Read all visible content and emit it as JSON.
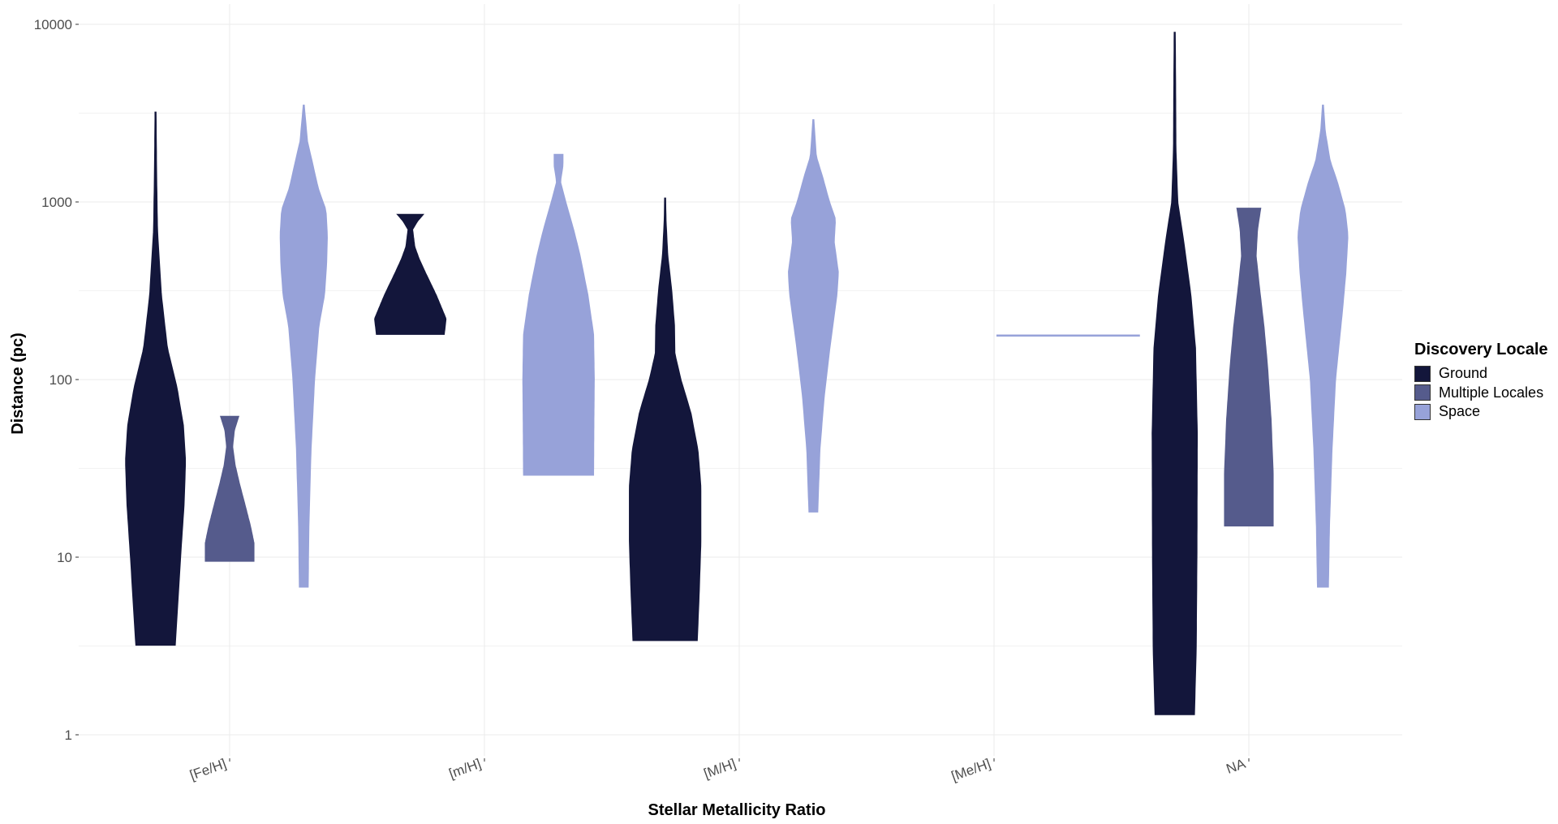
{
  "chart_data": {
    "type": "violin",
    "title": "",
    "xlabel": "Stellar Metallicity Ratio",
    "ylabel": "Distance (pc)",
    "y_scale": "log10",
    "ylim": [
      0.75,
      10000
    ],
    "y_ticks": [
      1,
      10,
      100,
      1000,
      10000
    ],
    "y_tick_labels": [
      "1",
      "10",
      "100",
      "1000",
      "10000"
    ],
    "categories": [
      "[Fe/H]",
      "[m/H]",
      "[M/H]",
      "[Me/H]",
      "NA"
    ],
    "grid": true,
    "legend": {
      "title": "Discovery Locale",
      "position": "right"
    },
    "series": [
      {
        "name": "Ground",
        "color": "#13163b",
        "violins": [
          {
            "category": "[Fe/H]",
            "min": 3.2,
            "max": 3200,
            "profile": [
              [
                3.2,
                0.55
              ],
              [
                5,
                0.61
              ],
              [
                10,
                0.7
              ],
              [
                20,
                0.8
              ],
              [
                35,
                0.84
              ],
              [
                55,
                0.78
              ],
              [
                90,
                0.6
              ],
              [
                150,
                0.33
              ],
              [
                300,
                0.16
              ],
              [
                700,
                0.05
              ],
              [
                1500,
                0.025
              ],
              [
                3200,
                0.01
              ]
            ]
          },
          {
            "category": "[m/H]",
            "min": 180,
            "max": 850,
            "profile": [
              [
                180,
                0.95
              ],
              [
                220,
                1.0
              ],
              [
                300,
                0.72
              ],
              [
                400,
                0.42
              ],
              [
                480,
                0.24
              ],
              [
                560,
                0.12
              ],
              [
                700,
                0.06
              ],
              [
                780,
                0.2
              ],
              [
                850,
                0.36
              ]
            ]
          },
          {
            "category": "[M/H]",
            "min": 3.4,
            "max": 1050,
            "profile": [
              [
                3.4,
                0.9
              ],
              [
                6,
                0.95
              ],
              [
                12,
                1.0
              ],
              [
                25,
                1.0
              ],
              [
                40,
                0.92
              ],
              [
                65,
                0.72
              ],
              [
                100,
                0.44
              ],
              [
                140,
                0.27
              ],
              [
                200,
                0.26
              ],
              [
                320,
                0.18
              ],
              [
                500,
                0.07
              ],
              [
                800,
                0.02
              ],
              [
                1050,
                0.01
              ]
            ]
          },
          {
            "category": "NA",
            "min": 1.3,
            "max": 9000,
            "profile": [
              [
                1.3,
                0.55
              ],
              [
                3,
                0.6
              ],
              [
                10,
                0.62
              ],
              [
                50,
                0.63
              ],
              [
                150,
                0.58
              ],
              [
                300,
                0.45
              ],
              [
                600,
                0.25
              ],
              [
                1000,
                0.08
              ],
              [
                2000,
                0.03
              ],
              [
                5000,
                0.02
              ],
              [
                9000,
                0.01
              ]
            ]
          }
        ]
      },
      {
        "name": "Multiple Locales",
        "color": "#555b8c",
        "violins": [
          {
            "category": "[Fe/H]",
            "min": 9.5,
            "max": 62,
            "profile": [
              [
                9.5,
                0.68
              ],
              [
                12,
                0.68
              ],
              [
                15,
                0.58
              ],
              [
                20,
                0.42
              ],
              [
                26,
                0.27
              ],
              [
                33,
                0.15
              ],
              [
                42,
                0.08
              ],
              [
                52,
                0.13
              ],
              [
                62,
                0.25
              ]
            ]
          },
          {
            "category": "NA",
            "min": 15,
            "max": 920,
            "profile": [
              [
                15,
                0.68
              ],
              [
                30,
                0.68
              ],
              [
                60,
                0.62
              ],
              [
                120,
                0.52
              ],
              [
                200,
                0.42
              ],
              [
                350,
                0.28
              ],
              [
                500,
                0.2
              ],
              [
                700,
                0.24
              ],
              [
                920,
                0.33
              ]
            ]
          }
        ]
      },
      {
        "name": "Space",
        "color": "#97a2d9",
        "violins": [
          {
            "category": "[Fe/H]",
            "min": 6.8,
            "max": 3500,
            "profile": [
              [
                6.8,
                0.12
              ],
              [
                15,
                0.14
              ],
              [
                40,
                0.2
              ],
              [
                100,
                0.3
              ],
              [
                200,
                0.42
              ],
              [
                300,
                0.58
              ],
              [
                450,
                0.64
              ],
              [
                650,
                0.66
              ],
              [
                900,
                0.62
              ],
              [
                1200,
                0.4
              ],
              [
                1600,
                0.26
              ],
              [
                2200,
                0.1
              ],
              [
                3500,
                0.01
              ]
            ]
          },
          {
            "category": "[m/H]",
            "min": 29,
            "max": 1850,
            "profile": [
              [
                29,
                0.98
              ],
              [
                60,
                0.99
              ],
              [
                100,
                1.0
              ],
              [
                180,
                0.98
              ],
              [
                300,
                0.82
              ],
              [
                500,
                0.6
              ],
              [
                700,
                0.42
              ],
              [
                1000,
                0.2
              ],
              [
                1300,
                0.05
              ],
              [
                1600,
                0.12
              ],
              [
                1850,
                0.12
              ]
            ]
          },
          {
            "category": "[M/H]",
            "min": 18,
            "max": 2900,
            "profile": [
              [
                18,
                0.12
              ],
              [
                40,
                0.18
              ],
              [
                80,
                0.3
              ],
              [
                150,
                0.46
              ],
              [
                300,
                0.66
              ],
              [
                400,
                0.7
              ],
              [
                600,
                0.58
              ],
              [
                800,
                0.62
              ],
              [
                1000,
                0.45
              ],
              [
                1400,
                0.25
              ],
              [
                1800,
                0.08
              ],
              [
                2900,
                0.01
              ]
            ]
          },
          {
            "category": "[Me/H]",
            "min": 176,
            "max": 178,
            "profile": [
              [
                176,
                2.0
              ],
              [
                178,
                2.0
              ]
            ]
          },
          {
            "category": "NA",
            "min": 6.8,
            "max": 3500,
            "profile": [
              [
                6.8,
                0.15
              ],
              [
                15,
                0.18
              ],
              [
                40,
                0.25
              ],
              [
                100,
                0.35
              ],
              [
                250,
                0.55
              ],
              [
                400,
                0.64
              ],
              [
                650,
                0.7
              ],
              [
                900,
                0.62
              ],
              [
                1300,
                0.4
              ],
              [
                1700,
                0.2
              ],
              [
                2500,
                0.06
              ],
              [
                3500,
                0.01
              ]
            ]
          }
        ]
      }
    ]
  }
}
